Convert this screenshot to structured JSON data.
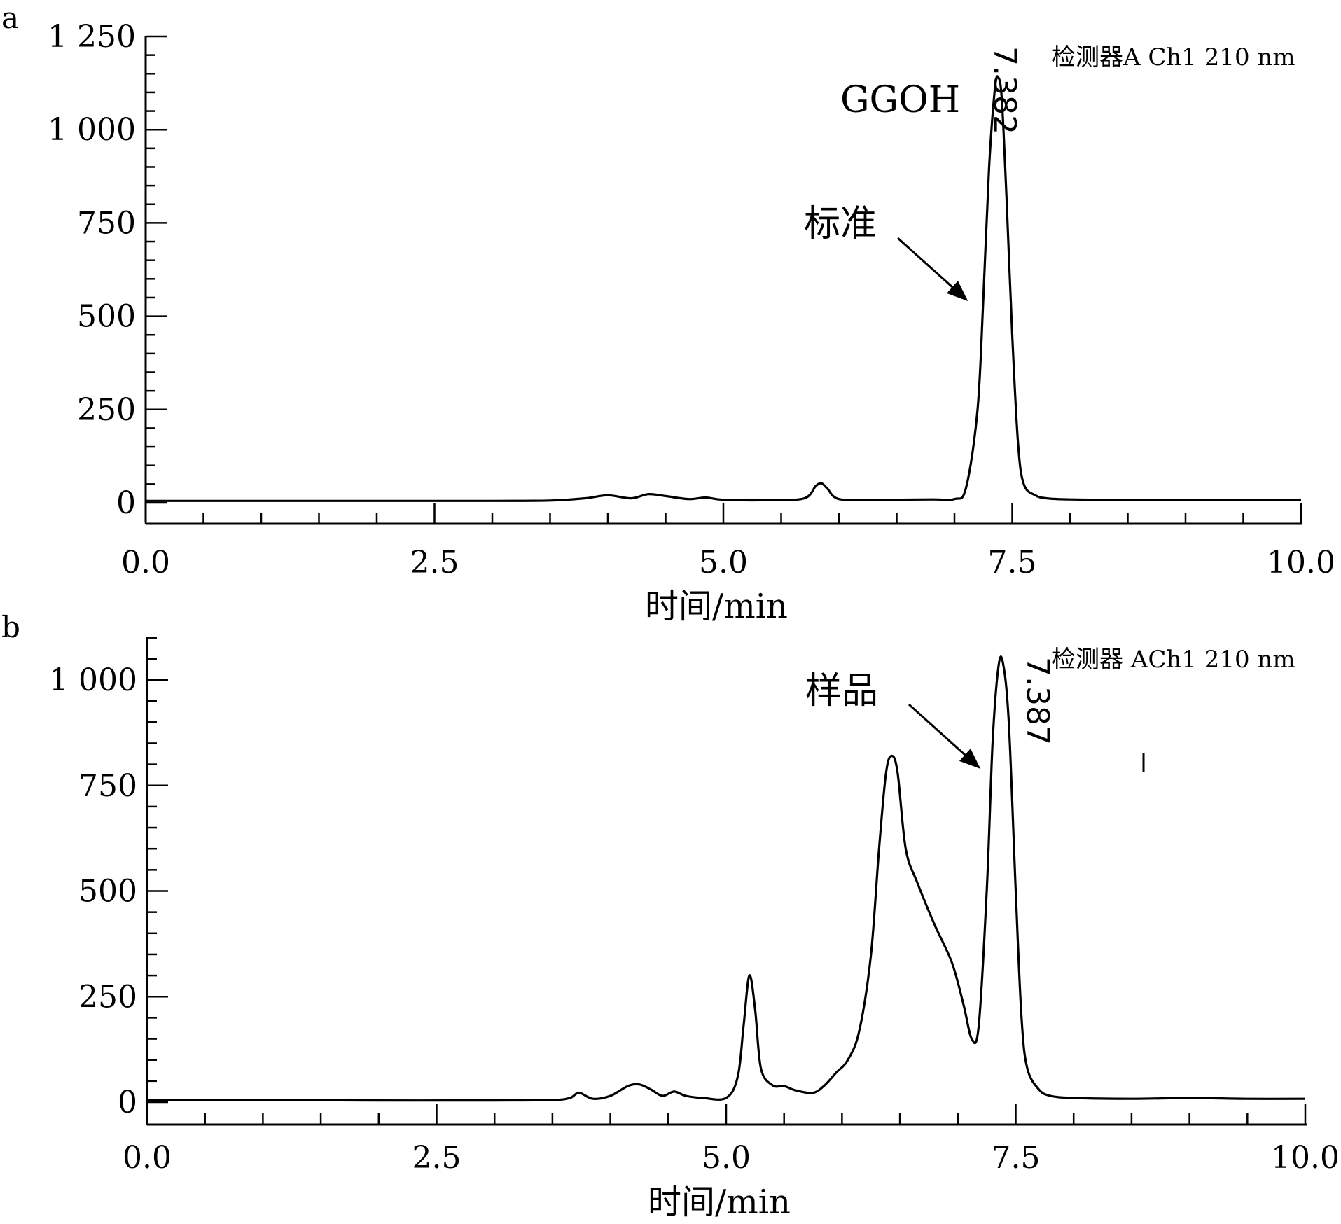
{
  "chart_data": [
    {
      "panel": "a",
      "type": "line",
      "xlabel": "时间/min",
      "ylabel": "",
      "xlim": [
        0,
        10
      ],
      "ylim": [
        -60,
        1250
      ],
      "xticks": [
        "0.0",
        "2.5",
        "5.0",
        "7.5",
        "10.0"
      ],
      "yticks": [
        "0",
        "250",
        "500",
        "750",
        "1 000",
        "1 250"
      ],
      "detector_label": "检测器A Ch1 210 nm",
      "compound_label": "GGOH",
      "arrow_label": "标准",
      "peak_rt_label": "7.382",
      "peak_rt": 7.382,
      "series": [
        {
          "x": [
            0.0,
            1.0,
            2.0,
            3.0,
            3.5,
            3.8,
            4.0,
            4.2,
            4.35,
            4.5,
            4.7,
            4.85,
            5.0,
            5.4,
            5.7,
            5.8,
            5.85,
            5.9,
            6.0,
            6.3,
            6.8,
            7.0,
            7.1,
            7.2,
            7.25,
            7.3,
            7.35,
            7.38,
            7.41,
            7.45,
            7.5,
            7.55,
            7.6,
            7.7,
            7.8,
            8.0,
            8.5,
            9.0,
            9.5,
            10.0
          ],
          "y": [
            5,
            5,
            5,
            5,
            6,
            12,
            20,
            12,
            23,
            18,
            10,
            14,
            8,
            7,
            12,
            45,
            52,
            38,
            10,
            8,
            9,
            10,
            40,
            250,
            550,
            900,
            1110,
            1140,
            1080,
            820,
            450,
            160,
            50,
            20,
            12,
            9,
            7,
            7,
            8,
            8
          ]
        }
      ]
    },
    {
      "panel": "b",
      "type": "line",
      "xlabel": "时间/min",
      "ylabel": "",
      "xlim": [
        0,
        10
      ],
      "ylim": [
        -60,
        1100
      ],
      "xticks": [
        "0.0",
        "2.5",
        "5.0",
        "7.5",
        "10.0"
      ],
      "yticks": [
        "0",
        "250",
        "500",
        "750",
        "1 000"
      ],
      "detector_label": "检测器 ACh1 210 nm",
      "arrow_label": "样品",
      "peak_rt_label": "7.387",
      "peak_rt": 7.387,
      "series": [
        {
          "x": [
            0.0,
            1.0,
            2.0,
            3.0,
            3.5,
            3.65,
            3.73,
            3.85,
            4.0,
            4.15,
            4.25,
            4.35,
            4.45,
            4.55,
            4.65,
            4.8,
            5.0,
            5.1,
            5.15,
            5.2,
            5.25,
            5.3,
            5.4,
            5.5,
            5.6,
            5.75,
            5.85,
            5.95,
            6.05,
            6.15,
            6.25,
            6.32,
            6.38,
            6.43,
            6.48,
            6.55,
            6.65,
            6.8,
            6.95,
            7.05,
            7.12,
            7.18,
            7.25,
            7.3,
            7.35,
            7.39,
            7.44,
            7.5,
            7.55,
            7.6,
            7.7,
            7.8,
            8.0,
            8.5,
            9.0,
            9.5,
            10.0
          ],
          "y": [
            5,
            5,
            4,
            4,
            5,
            10,
            22,
            8,
            15,
            38,
            42,
            30,
            15,
            25,
            15,
            10,
            10,
            60,
            180,
            300,
            220,
            80,
            40,
            38,
            28,
            22,
            40,
            70,
            100,
            170,
            350,
            600,
            780,
            820,
            780,
            600,
            520,
            420,
            330,
            230,
            150,
            180,
            500,
            850,
            1030,
            1040,
            900,
            500,
            200,
            80,
            30,
            15,
            10,
            8,
            10,
            8,
            8
          ]
        }
      ]
    }
  ]
}
